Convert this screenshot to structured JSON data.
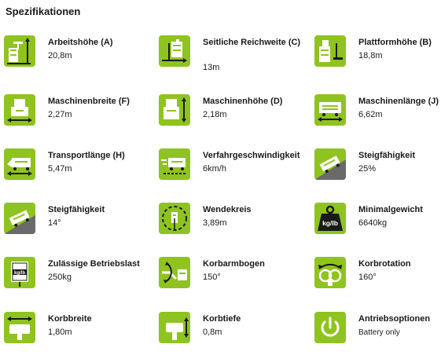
{
  "section_title": "Spezifikationen",
  "accent_color": "#8fc31f",
  "specs": [
    {
      "label": "Arbeitshöhe (A)",
      "value": "20,8m",
      "icon": "working-height-icon"
    },
    {
      "label": "Seitliche Reichweite (C)",
      "value": "13m",
      "icon": "side-reach-icon"
    },
    {
      "label": "Plattformhöhe (B)",
      "value": "18,8m",
      "icon": "platform-height-icon"
    },
    {
      "label": "Maschinenbreite (F)",
      "value": "2,27m",
      "icon": "machine-width-icon"
    },
    {
      "label": "Maschinenhöhe (D)",
      "value": "2,18m",
      "icon": "machine-height-icon"
    },
    {
      "label": "Maschinenlänge (J)",
      "value": "6,62m",
      "icon": "machine-length-icon"
    },
    {
      "label": "Transportlänge (H)",
      "value": "5,47m",
      "icon": "transport-length-icon"
    },
    {
      "label": "Verfahrgeschwindigkeit",
      "value": "6km/h",
      "icon": "travel-speed-icon"
    },
    {
      "label": "Steigfähigkeit",
      "value": "25%",
      "icon": "gradeability-percent-icon"
    },
    {
      "label": "Steigfähigkeit",
      "value": "14°",
      "icon": "gradeability-degree-icon"
    },
    {
      "label": "Wendekreis",
      "value": "3,89m",
      "icon": "turning-radius-icon"
    },
    {
      "label": "Minimalgewicht",
      "value": "6640kg",
      "icon": "weight-icon",
      "icon_text": "kg/lb"
    },
    {
      "label": "Zulässige Betriebslast",
      "value": "250kg",
      "icon": "platform-capacity-icon",
      "icon_text": "kg/lb"
    },
    {
      "label": "Korbarmbogen",
      "value": "150°",
      "icon": "jib-articulation-icon"
    },
    {
      "label": "Korbrotation",
      "value": "160°",
      "icon": "basket-rotation-icon"
    },
    {
      "label": "Korbbreite",
      "value": "1,80m",
      "icon": "basket-width-icon"
    },
    {
      "label": "Korbtiefe",
      "value": "0,8m",
      "icon": "basket-depth-icon"
    },
    {
      "label": "Antriebsoptionen",
      "value": "Battery only",
      "icon": "power-option-icon"
    }
  ]
}
